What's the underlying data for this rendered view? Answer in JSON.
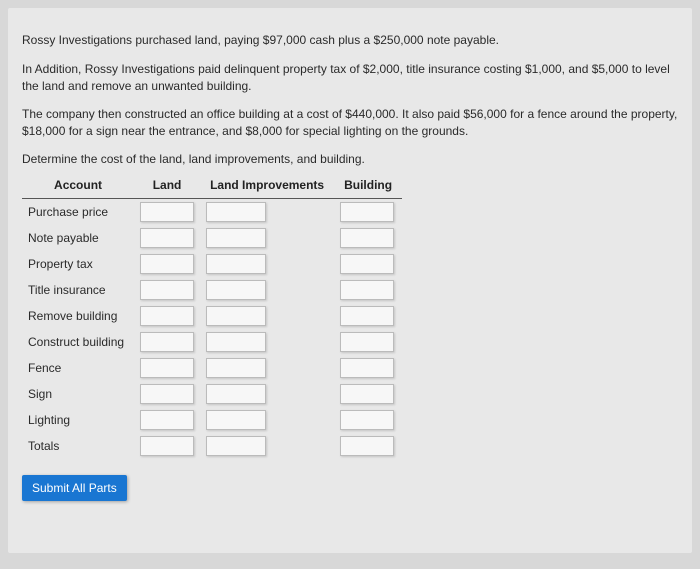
{
  "paragraphs": {
    "p1": "Rossy Investigations purchased land, paying $97,000 cash plus a $250,000 note payable.",
    "p2": "In Addition, Rossy Investigations paid delinquent property tax of $2,000, title insurance costing $1,000, and $5,000 to level the land and remove an unwanted building.",
    "p3": "The company then constructed an office building at a cost of $440,000. It also paid $56,000 for a fence around the property, $18,000 for a sign near the entrance, and $8,000 for special lighting on the grounds.",
    "instruction": "Determine the cost of the land, land improvements, and building."
  },
  "table": {
    "headers": {
      "account": "Account",
      "land": "Land",
      "land_improvements": "Land Improvements",
      "building": "Building"
    },
    "rows": [
      "Purchase price",
      "Note payable",
      "Property tax",
      "Title insurance",
      "Remove building",
      "Construct building",
      "Fence",
      "Sign",
      "Lighting",
      "Totals"
    ]
  },
  "submit_label": "Submit All Parts",
  "colors": {
    "page_bg": "#e8e8e8",
    "body_bg": "#d8d8d8",
    "text": "#2a2a2a",
    "button_bg": "#1976d2",
    "button_text": "#ffffff",
    "input_border": "#bbbbbb",
    "header_border": "#555555"
  }
}
